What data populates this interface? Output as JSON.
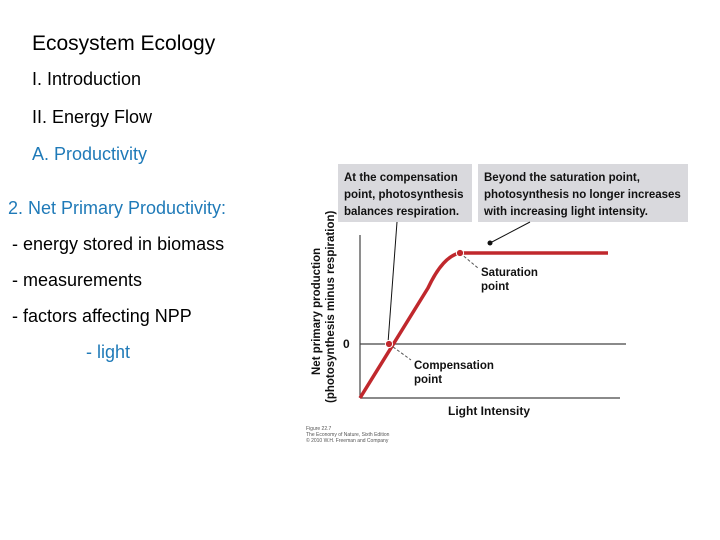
{
  "slide": {
    "title": "Ecosystem Ecology",
    "outline": [
      "I. Introduction",
      "II. Energy Flow",
      "A. Productivity",
      "2. Net Primary Productivity:",
      "- energy stored in biomass",
      "- measurements",
      "- factors affecting NPP",
      "- light"
    ]
  },
  "figure": {
    "callout_left": [
      "At the compensation",
      "point, photosynthesis",
      "balances respiration."
    ],
    "callout_right": [
      "Beyond the saturation point,",
      "photosynthesis no longer increases",
      "with increasing light intensity."
    ],
    "ylabel_1": "Net primary production",
    "ylabel_2": "(photosynthesis minus respiration)",
    "zero_label": "0",
    "xlabel": "Light Intensity",
    "saturation_label": [
      "Saturation",
      "point"
    ],
    "compensation_label": [
      "Compensation",
      "point"
    ],
    "credit": [
      "Figure 22.7",
      "The Economy of Nature, Sixth Edition",
      "© 2010 W.H. Freeman and Company"
    ],
    "colors": {
      "curve": "#c0282d",
      "callout_bg": "#d9d9dd",
      "axis": "#444444",
      "accent_blue": "#1f7ab8"
    }
  }
}
